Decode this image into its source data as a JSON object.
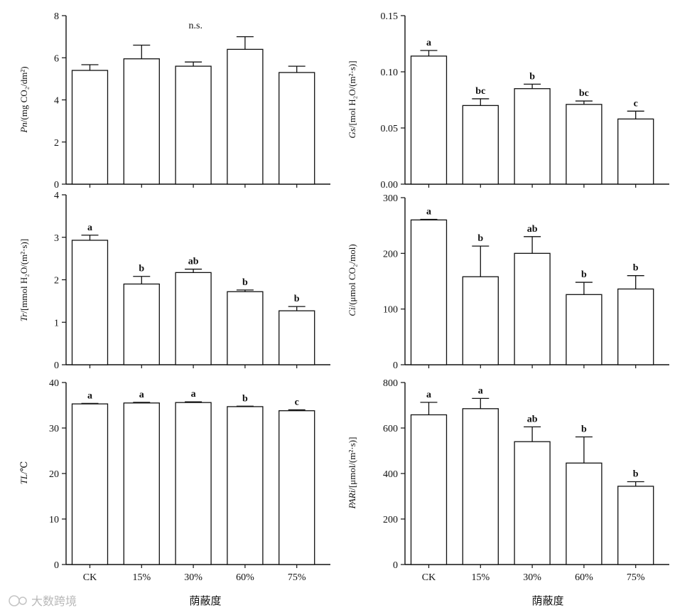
{
  "figure": {
    "x_title": "荫蔽度",
    "watermark": "大数跨境"
  },
  "chart_data": [
    {
      "id": "pn",
      "type": "bar",
      "categories": [
        "CK",
        "15%",
        "30%",
        "60%",
        "75%"
      ],
      "values": [
        5.4,
        5.95,
        5.6,
        6.4,
        5.3
      ],
      "errors": [
        0.27,
        0.65,
        0.2,
        0.6,
        0.3
      ],
      "significance": [],
      "annotation": "n.s.",
      "ylabel_var": "Pn",
      "ylabel_unit": "/(mg CO₂/dm²)",
      "ylim": [
        0,
        8
      ],
      "yticks": [
        "0",
        "2",
        "4",
        "6",
        "8"
      ],
      "ytick_values": [
        0,
        2,
        4,
        6,
        8
      ],
      "show_categories": false
    },
    {
      "id": "gs",
      "type": "bar",
      "categories": [
        "CK",
        "15%",
        "30%",
        "60%",
        "75%"
      ],
      "values": [
        0.114,
        0.07,
        0.085,
        0.071,
        0.058
      ],
      "errors": [
        0.005,
        0.006,
        0.004,
        0.003,
        0.007
      ],
      "significance": [
        "a",
        "bc",
        "b",
        "bc",
        "c"
      ],
      "annotation": "",
      "ylabel_var": "Gs",
      "ylabel_unit": "/[mol H₂O/(m²·s)]",
      "ylim": [
        0,
        0.15
      ],
      "yticks": [
        "0.00",
        "0.05",
        "0.10",
        "0.15"
      ],
      "ytick_values": [
        0,
        0.05,
        0.1,
        0.15
      ],
      "show_categories": false
    },
    {
      "id": "tr",
      "type": "bar",
      "categories": [
        "CK",
        "15%",
        "30%",
        "60%",
        "75%"
      ],
      "values": [
        2.93,
        1.9,
        2.17,
        1.72,
        1.27
      ],
      "errors": [
        0.12,
        0.18,
        0.08,
        0.04,
        0.1
      ],
      "significance": [
        "a",
        "b",
        "ab",
        "b",
        "b"
      ],
      "annotation": "",
      "ylabel_var": "Tr",
      "ylabel_unit": "/[mmol H₂O/(m²·s)]",
      "ylim": [
        0,
        4
      ],
      "yticks": [
        "0",
        "1",
        "2",
        "3",
        "4"
      ],
      "ytick_values": [
        0,
        1,
        2,
        3,
        4
      ],
      "show_categories": false
    },
    {
      "id": "ci",
      "type": "bar",
      "categories": [
        "CK",
        "15%",
        "30%",
        "60%",
        "75%"
      ],
      "values": [
        260,
        158,
        200,
        126,
        136
      ],
      "errors": [
        1,
        55,
        30,
        22,
        24
      ],
      "significance": [
        "a",
        "b",
        "ab",
        "b",
        "b"
      ],
      "annotation": "",
      "ylabel_var": "Ci",
      "ylabel_unit": "/(μmol CO₂/mol)",
      "ylim": [
        0,
        300
      ],
      "yticks": [
        "0",
        "100",
        "200",
        "300"
      ],
      "ytick_values": [
        0,
        100,
        200,
        300
      ],
      "show_categories": false
    },
    {
      "id": "tl",
      "type": "bar",
      "categories": [
        "CK",
        "15%",
        "30%",
        "60%",
        "75%"
      ],
      "values": [
        35.3,
        35.5,
        35.6,
        34.7,
        33.8
      ],
      "errors": [
        0.1,
        0.15,
        0.15,
        0.1,
        0.2
      ],
      "significance": [
        "a",
        "a",
        "a",
        "b",
        "c"
      ],
      "annotation": "",
      "ylabel_var": "TL",
      "ylabel_unit": "/℃",
      "ylim": [
        0,
        40
      ],
      "yticks": [
        "0",
        "10",
        "20",
        "30",
        "40"
      ],
      "ytick_values": [
        0,
        10,
        20,
        30,
        40
      ],
      "show_categories": true
    },
    {
      "id": "pari",
      "type": "bar",
      "categories": [
        "CK",
        "15%",
        "30%",
        "60%",
        "75%"
      ],
      "values": [
        658,
        685,
        540,
        446,
        344
      ],
      "errors": [
        55,
        45,
        65,
        115,
        20
      ],
      "significance": [
        "a",
        "a",
        "ab",
        "b",
        "b"
      ],
      "annotation": "",
      "ylabel_var": "PARi",
      "ylabel_unit": "/[μmol/(m²·s)]",
      "ylim": [
        0,
        800
      ],
      "yticks": [
        "0",
        "200",
        "400",
        "600",
        "800"
      ],
      "ytick_values": [
        0,
        200,
        400,
        600,
        800
      ],
      "show_categories": true
    }
  ]
}
